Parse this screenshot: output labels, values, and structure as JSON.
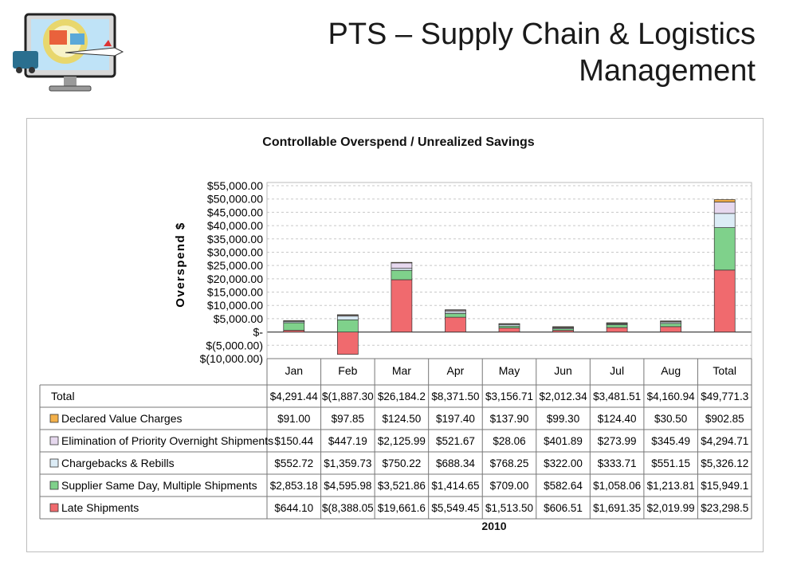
{
  "slide": {
    "title_line1": "PTS – Supply Chain & Logistics",
    "title_line2": "Management"
  },
  "logo": {
    "icon": "computer-logistics-icon"
  },
  "chart_data": {
    "type": "bar",
    "stacked": true,
    "title": "Controllable Overspend / Unrealized Savings",
    "ylabel": "Overspend $",
    "xlabel": "2010",
    "ylim": [
      -10000,
      55000
    ],
    "yticks": [
      55000,
      50000,
      45000,
      40000,
      35000,
      30000,
      25000,
      20000,
      15000,
      10000,
      5000,
      0,
      -5000,
      -10000
    ],
    "ytick_labels": [
      "$55,000.00",
      "$50,000.00",
      "$45,000.00",
      "$40,000.00",
      "$35,000.00",
      "$30,000.00",
      "$25,000.00",
      "$20,000.00",
      "$15,000.00",
      "$10,000.00",
      "$5,000.00",
      "$-",
      "$(5,000.00)",
      "$(10,000.00)"
    ],
    "grid": true,
    "categories": [
      "Jan",
      "Feb",
      "Mar",
      "Apr",
      "May",
      "Jun",
      "Jul",
      "Aug",
      "Total"
    ],
    "series": [
      {
        "name": "Late Shipments",
        "color": "#f06a6e",
        "values": [
          644.1,
          -8388.05,
          19661.6,
          5549.45,
          1513.5,
          606.51,
          1691.35,
          2019.99,
          23298.5
        ],
        "labels": [
          "$644.10",
          "$(8,388.05",
          "$19,661.6",
          "$5,549.45",
          "$1,513.50",
          "$606.51",
          "$1,691.35",
          "$2,019.99",
          "$23,298.5"
        ]
      },
      {
        "name": "Supplier Same Day, Multiple Shipments",
        "color": "#7fd18b",
        "values": [
          2853.18,
          4595.98,
          3521.86,
          1414.65,
          709.0,
          582.64,
          1058.06,
          1213.81,
          15949.1
        ],
        "labels": [
          "$2,853.18",
          "$4,595.98",
          "$3,521.86",
          "$1,414.65",
          "$709.00",
          "$582.64",
          "$1,058.06",
          "$1,213.81",
          "$15,949.1"
        ]
      },
      {
        "name": "Chargebacks & Rebills",
        "color": "#dcecf6",
        "values": [
          552.72,
          1359.73,
          750.22,
          688.34,
          768.25,
          322.0,
          333.71,
          551.15,
          5326.12
        ],
        "labels": [
          "$552.72",
          "$1,359.73",
          "$750.22",
          "$688.34",
          "$768.25",
          "$322.00",
          "$333.71",
          "$551.15",
          "$5,326.12"
        ]
      },
      {
        "name": "Elimination of Priority Overnight Shipments",
        "color": "#e6d8ee",
        "values": [
          150.44,
          447.19,
          2125.99,
          521.67,
          28.06,
          401.89,
          273.99,
          345.49,
          4294.71
        ],
        "labels": [
          "$150.44",
          "$447.19",
          "$2,125.99",
          "$521.67",
          "$28.06",
          "$401.89",
          "$273.99",
          "$345.49",
          "$4,294.71"
        ]
      },
      {
        "name": "Declared Value Charges",
        "color": "#f3b04a",
        "values": [
          91.0,
          97.85,
          124.5,
          197.4,
          137.9,
          99.3,
          124.4,
          30.5,
          902.85
        ],
        "labels": [
          "$91.00",
          "$97.85",
          "$124.50",
          "$197.40",
          "$137.90",
          "$99.30",
          "$124.40",
          "$30.50",
          "$902.85"
        ]
      }
    ],
    "total_row": {
      "name": "Total",
      "labels": [
        "$4,291.44",
        "$(1,887.30",
        "$26,184.2",
        "$8,371.50",
        "$3,156.71",
        "$2,012.34",
        "$3,481.51",
        "$4,160.94",
        "$49,771.3"
      ]
    }
  }
}
